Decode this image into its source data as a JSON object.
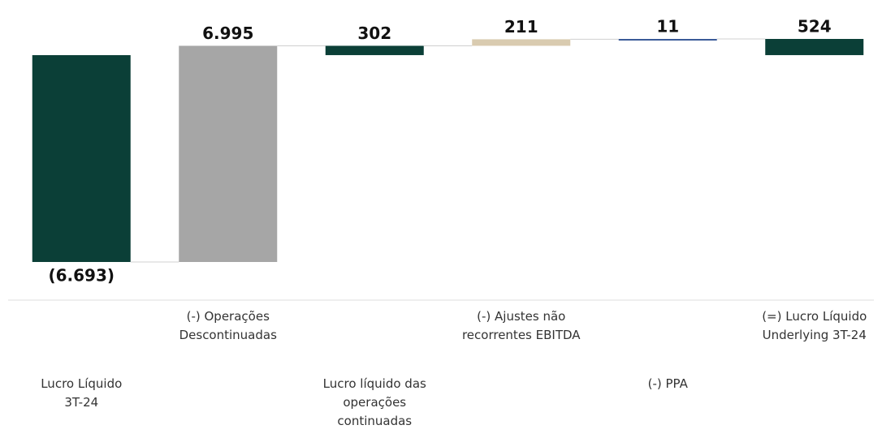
{
  "chart_data": {
    "type": "waterfall",
    "categories": [
      "Lucro Líquido 3T-24",
      "(-) Operações Descontinuadas",
      "Lucro líquido das operações continuadas",
      "(-)  Ajustes não recorrentes EBITDA",
      "(-)  PPA",
      "(=) Lucro Líquido Underlying 3T-24"
    ],
    "values": [
      -6693,
      6995,
      302,
      211,
      11,
      524
    ],
    "value_labels": [
      "(6.693)",
      "6.995",
      "302",
      "211",
      "11",
      "524"
    ],
    "measures": [
      "absolute",
      "relative",
      "total",
      "relative",
      "relative",
      "total"
    ],
    "colors": [
      "#0b3f37",
      "#a6a6a6",
      "#0b3f37",
      "#d9cbb0",
      "#3a5a98",
      "#0b3f37"
    ]
  }
}
